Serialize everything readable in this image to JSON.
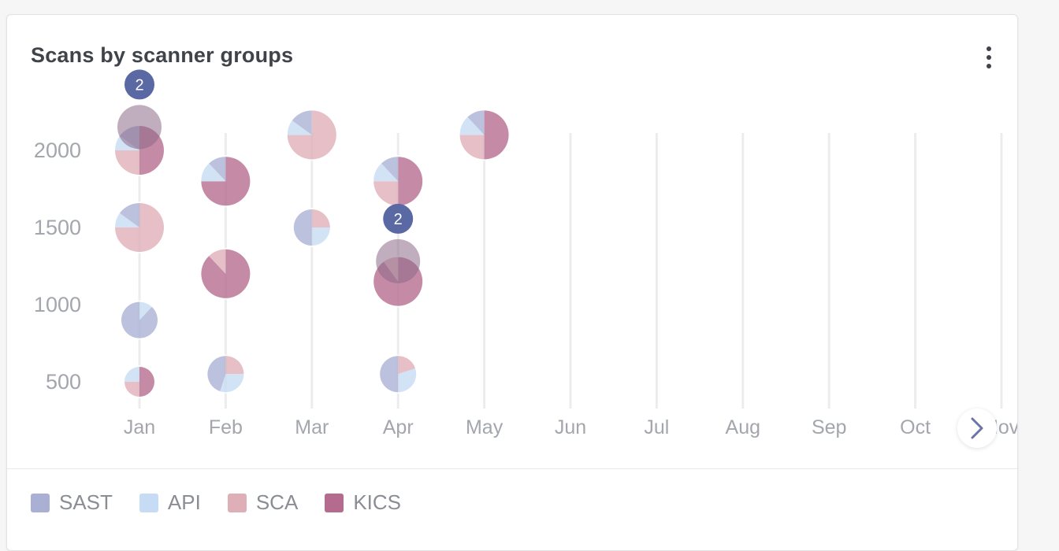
{
  "header": {
    "title": "Scans by scanner groups"
  },
  "colors": {
    "SAST": "#aab0d4",
    "API": "#c6dcf4",
    "SCA": "#dfafb7",
    "KICS": "#b56b8e",
    "cluster_badge": "#5a68a3"
  },
  "icons": {
    "menu": "kebab-menu-icon",
    "next": "chevron-right-icon"
  },
  "chart_data": {
    "type": "scatter",
    "title": "Scans by scanner groups",
    "xlabel": "",
    "ylabel": "",
    "x_categories": [
      "Jan",
      "Feb",
      "Mar",
      "Apr",
      "May",
      "Jun",
      "Jul",
      "Aug",
      "Sep",
      "Oct",
      "Nov"
    ],
    "y_ticks": [
      2000,
      1500,
      1000,
      500
    ],
    "ylim": [
      400,
      2200
    ],
    "grid": "vertical",
    "legend_position": "bottom-left",
    "marker": "pie",
    "series": [
      {
        "name": "SAST"
      },
      {
        "name": "API"
      },
      {
        "name": "SCA"
      },
      {
        "name": "KICS"
      }
    ],
    "points": [
      {
        "x": "Jan",
        "y": 2000,
        "size": "large",
        "shares": {
          "SAST": 0.15,
          "API": 0.1,
          "SCA": 0.25,
          "KICS": 0.5
        }
      },
      {
        "x": "Jan",
        "y": 1500,
        "size": "large",
        "shares": {
          "SAST": 0.15,
          "API": 0.1,
          "SCA": 0.75,
          "KICS": 0
        }
      },
      {
        "x": "Jan",
        "y": 900,
        "size": "medium",
        "shares": {
          "SAST": 0.88,
          "API": 0.12,
          "SCA": 0,
          "KICS": 0
        }
      },
      {
        "x": "Jan",
        "y": 500,
        "size": "small",
        "shares": {
          "SAST": 0,
          "API": 0.25,
          "SCA": 0.25,
          "KICS": 0.5
        }
      },
      {
        "x": "Feb",
        "y": 1800,
        "size": "large",
        "shares": {
          "SAST": 0.12,
          "API": 0.13,
          "SCA": 0,
          "KICS": 0.75
        }
      },
      {
        "x": "Feb",
        "y": 1200,
        "size": "large",
        "shares": {
          "SAST": 0,
          "API": 0,
          "SCA": 0.12,
          "KICS": 0.88
        }
      },
      {
        "x": "Feb",
        "y": 550,
        "size": "medium",
        "shares": {
          "SAST": 0.45,
          "API": 0.3,
          "SCA": 0.25,
          "KICS": 0
        }
      },
      {
        "x": "Mar",
        "y": 2100,
        "size": "large",
        "shares": {
          "SAST": 0.15,
          "API": 0.1,
          "SCA": 0.75,
          "KICS": 0
        }
      },
      {
        "x": "Mar",
        "y": 1500,
        "size": "medium",
        "shares": {
          "SAST": 0.5,
          "API": 0.25,
          "SCA": 0.25,
          "KICS": 0
        }
      },
      {
        "x": "Apr",
        "y": 1800,
        "size": "large",
        "shares": {
          "SAST": 0.12,
          "API": 0.13,
          "SCA": 0.25,
          "KICS": 0.5
        }
      },
      {
        "x": "Apr",
        "y": 1150,
        "size": "large",
        "shares": {
          "SAST": 0,
          "API": 0,
          "SCA": 0.1,
          "KICS": 0.9
        }
      },
      {
        "x": "Apr",
        "y": 550,
        "size": "medium",
        "shares": {
          "SAST": 0.5,
          "API": 0.3,
          "SCA": 0.2,
          "KICS": 0
        }
      },
      {
        "x": "May",
        "y": 2100,
        "size": "large",
        "shares": {
          "SAST": 0.12,
          "API": 0.13,
          "SCA": 0.25,
          "KICS": 0.5
        }
      }
    ],
    "clusters": [
      {
        "x": "Jan",
        "y": 2100,
        "count": "2"
      },
      {
        "x": "Apr",
        "y": 1230,
        "count": "2"
      }
    ]
  }
}
